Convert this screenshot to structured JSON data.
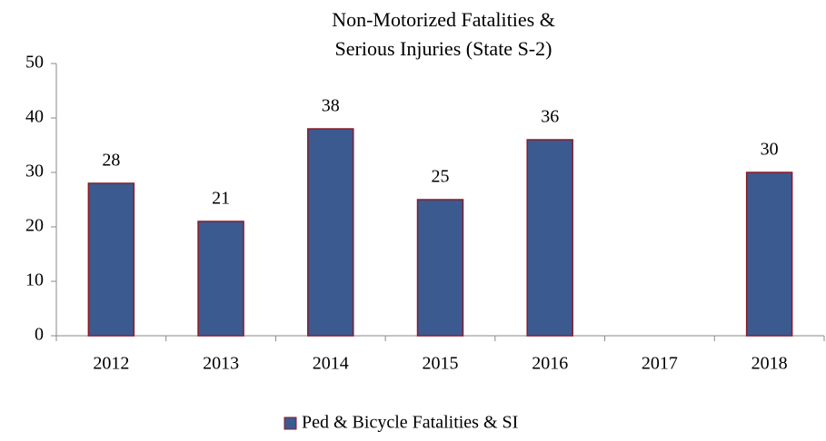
{
  "chart_data": {
    "type": "bar",
    "title": [
      "Non-Motorized Fatalities &",
      "Serious Injuries (State S-2)"
    ],
    "categories": [
      "2012",
      "2013",
      "2014",
      "2015",
      "2016",
      "2017",
      "2018"
    ],
    "series": [
      {
        "name": "Ped & Bicycle Fatalities & SI",
        "color": "#3b5a8f",
        "values": [
          28,
          21,
          38,
          25,
          36,
          null,
          30
        ]
      }
    ],
    "ylim": [
      0,
      50
    ],
    "yticks": [
      0,
      10,
      20,
      30,
      40,
      50
    ],
    "grid": false,
    "legend": "bottom"
  }
}
